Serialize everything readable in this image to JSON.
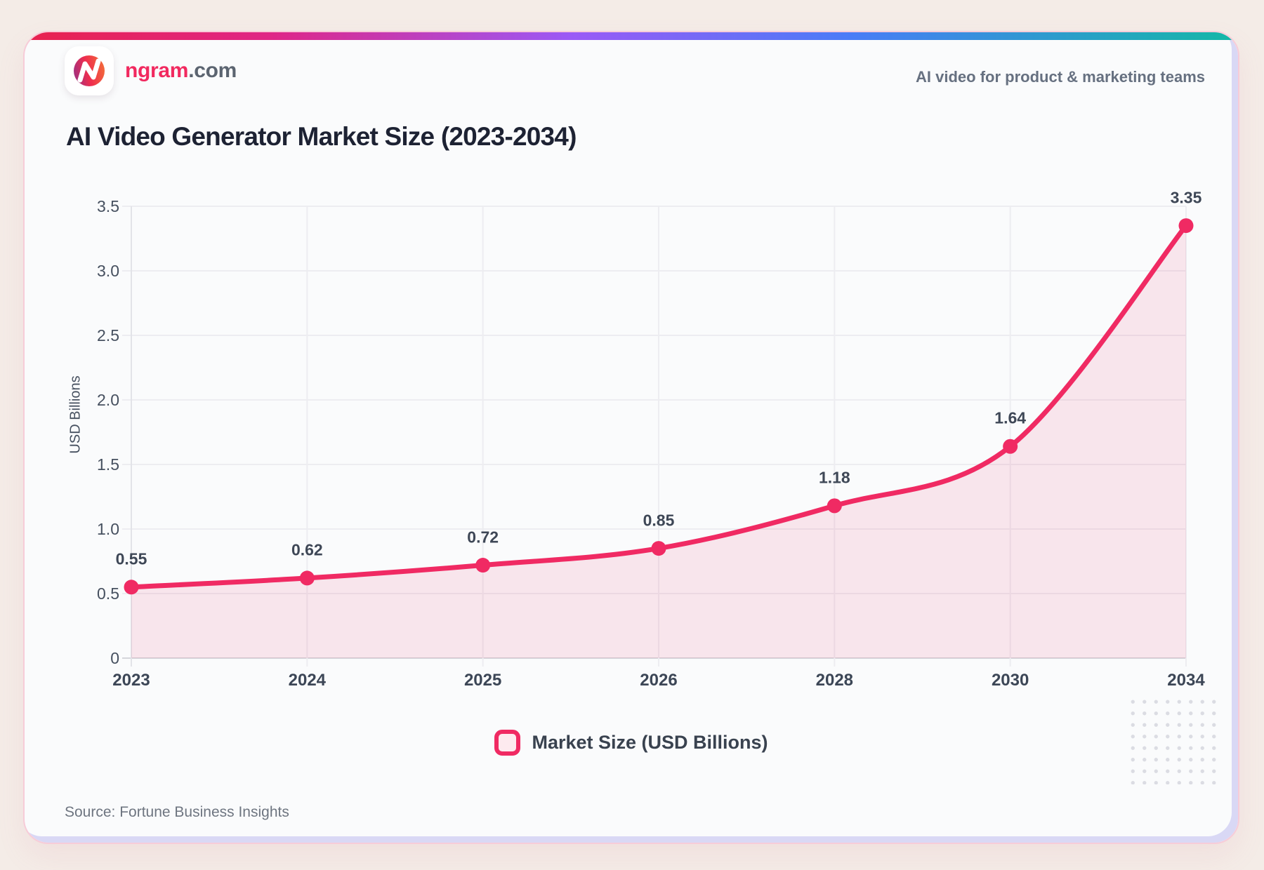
{
  "header": {
    "brand_name": "ngram",
    "brand_suffix": ".com",
    "tagline": "AI video for product & marketing teams"
  },
  "title": "AI Video Generator Market Size (2023-2034)",
  "chart_data": {
    "type": "area",
    "categories": [
      "2023",
      "2024",
      "2025",
      "2026",
      "2028",
      "2030",
      "2034"
    ],
    "series": [
      {
        "name": "Market Size (USD Billions)",
        "values": [
          0.55,
          0.62,
          0.72,
          0.85,
          1.18,
          1.64,
          3.35
        ],
        "value_labels": [
          "0.55",
          "0.62",
          "0.72",
          "0.85",
          "1.18",
          "1.64",
          "3.35"
        ]
      }
    ],
    "title": "AI Video Generator Market Size (2023-2034)",
    "xlabel": "",
    "ylabel": "USD Billions",
    "ylim": [
      0,
      3.5
    ],
    "ytick_step": 0.5,
    "yticks": [
      "0",
      "0.5",
      "1.0",
      "1.5",
      "2.0",
      "2.5",
      "3.0",
      "3.5"
    ],
    "grid": true,
    "legend_position": "bottom"
  },
  "legend": {
    "label": "Market Size (USD Billions)"
  },
  "source": "Source: Fortune Business Insights",
  "colors": {
    "accent": "#F02A63",
    "area_fill": "rgba(240,42,99,0.10)",
    "grid_line": "#ededf1",
    "axis_line": "#e2e3e8",
    "baseline": "#d5d6db",
    "title_text": "#1d2233",
    "tick_text": "#46505f",
    "brand_pink": "#f1295f",
    "gradient_stops": [
      "#E8224E",
      "#E02585",
      "#9B59F6",
      "#4A7CF7",
      "#14B8A6"
    ]
  }
}
